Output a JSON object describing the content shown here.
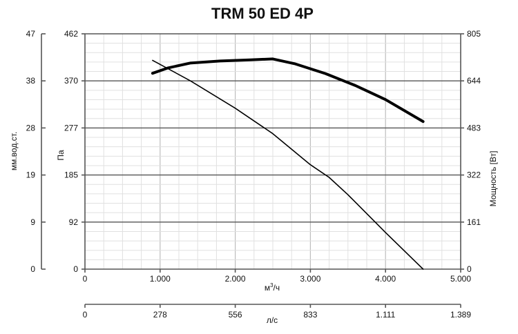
{
  "chart_data": {
    "type": "line",
    "title": "TRM 50 ED 4P",
    "xlabel_prefix": "м",
    "xlabel_sup": "3",
    "xlabel_suffix": "/ч",
    "x2label": "л/с",
    "ylabel": "Па",
    "y_left_outer_label": "мм.вод.ст.",
    "y_right_label": "Мощность [Вт]",
    "xlim": [
      0,
      5000
    ],
    "ylim": [
      0,
      462
    ],
    "y_right_lim": [
      0,
      805
    ],
    "grid": true,
    "x_ticks": [
      "0",
      "1.000",
      "2.000",
      "3.000",
      "4.000",
      "5.000"
    ],
    "x_tick_values": [
      0,
      1000,
      2000,
      3000,
      4000,
      5000
    ],
    "x2_ticks": [
      "0",
      "278",
      "556",
      "833",
      "1.111",
      "1.389"
    ],
    "y_ticks": [
      "0",
      "92",
      "185",
      "277",
      "370",
      "462"
    ],
    "y_tick_values": [
      0,
      92,
      185,
      277,
      370,
      462
    ],
    "y_outer_ticks": [
      "0",
      "9",
      "19",
      "28",
      "38",
      "47"
    ],
    "y_right_ticks": [
      "0",
      "161",
      "322",
      "483",
      "644",
      "805"
    ],
    "series": [
      {
        "axis": "left",
        "x": [
          900,
          1400,
          2000,
          2500,
          3000,
          3250,
          3500,
          4000,
          4500
        ],
        "values": [
          410,
          370,
          316,
          266,
          205,
          180,
          146,
          72,
          0
        ]
      },
      {
        "axis": "right",
        "x": [
          900,
          1100,
          1400,
          1800,
          2200,
          2500,
          2800,
          3200,
          3600,
          4000,
          4500
        ],
        "values": [
          670,
          688,
          705,
          712,
          716,
          719,
          702,
          669,
          628,
          580,
          505
        ]
      }
    ]
  }
}
